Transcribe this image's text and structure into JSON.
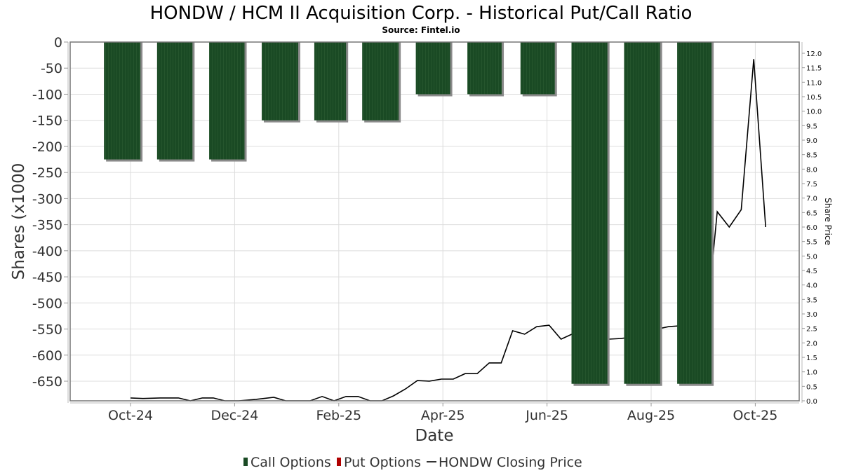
{
  "chart_data": {
    "type": "bar",
    "title": "HONDW / HCM II Acquisition Corp. - Historical Put/Call Ratio",
    "subtitle": "Source: Fintel.io",
    "xlabel": "Date",
    "ylabel": "Shares (x1000",
    "y2label": "Share Price",
    "ylim": [
      -690,
      0
    ],
    "y2lim": [
      0,
      12.4
    ],
    "xrange_months_from_oct24": [
      -1.16,
      12.84
    ],
    "grid": true,
    "legend_position": "bottom",
    "x_ticks": [
      {
        "label": "Oct-24",
        "month": 0
      },
      {
        "label": "Dec-24",
        "month": 2
      },
      {
        "label": "Feb-25",
        "month": 4
      },
      {
        "label": "Apr-25",
        "month": 6
      },
      {
        "label": "Jun-25",
        "month": 8
      },
      {
        "label": "Aug-25",
        "month": 10
      },
      {
        "label": "Oct-25",
        "month": 12
      }
    ],
    "y_ticks": [
      "0",
      "-50",
      "-100",
      "-150",
      "-200",
      "-250",
      "-300",
      "-350",
      "-400",
      "-450",
      "-500",
      "-550",
      "-600",
      "-650"
    ],
    "y_tick_values": [
      0,
      -50,
      -100,
      -150,
      -200,
      -250,
      -300,
      -350,
      -400,
      -450,
      -500,
      -550,
      -600,
      -650
    ],
    "y2_ticks": [
      "0.0",
      "0.5",
      "1.0",
      "1.5",
      "2.0",
      "2.5",
      "3.0",
      "3.5",
      "4.0",
      "4.5",
      "5.0",
      "5.5",
      "6.0",
      "6.5",
      "7.0",
      "7.5",
      "8.0",
      "8.5",
      "9.0",
      "9.5",
      "10.0",
      "10.5",
      "11.0",
      "11.5",
      "12.0"
    ],
    "y2_tick_values": [
      0,
      0.5,
      1,
      1.5,
      2,
      2.5,
      3,
      3.5,
      4,
      4.5,
      5,
      5.5,
      6,
      6.5,
      7,
      7.5,
      8,
      8.5,
      9,
      9.5,
      10,
      10.5,
      11,
      11.5,
      12
    ],
    "legend": [
      {
        "label": "Call Options",
        "color": "#1a4a24",
        "kind": "bar"
      },
      {
        "label": "Put Options",
        "color": "#b00000",
        "kind": "bar"
      },
      {
        "label": "HONDW Closing Price",
        "color": "#000000",
        "kind": "line"
      }
    ],
    "series": [
      {
        "name": "Call Options",
        "color": "#1a4a24",
        "bars": [
          {
            "start_month": -0.51,
            "end_month": 0.19,
            "value": -225
          },
          {
            "start_month": 0.51,
            "end_month": 1.19,
            "value": -225
          },
          {
            "start_month": 1.51,
            "end_month": 2.19,
            "value": -225
          },
          {
            "start_month": 2.52,
            "end_month": 3.22,
            "value": -150
          },
          {
            "start_month": 3.53,
            "end_month": 4.14,
            "value": -150
          },
          {
            "start_month": 4.45,
            "end_month": 5.15,
            "value": -150
          },
          {
            "start_month": 5.48,
            "end_month": 6.14,
            "value": -100
          },
          {
            "start_month": 6.47,
            "end_month": 7.13,
            "value": -100
          },
          {
            "start_month": 7.49,
            "end_month": 8.15,
            "value": -100
          },
          {
            "start_month": 8.47,
            "end_month": 9.16,
            "value": -655
          },
          {
            "start_month": 9.48,
            "end_month": 10.17,
            "value": -655
          },
          {
            "start_month": 10.5,
            "end_month": 11.16,
            "value": -655
          }
        ]
      },
      {
        "name": "Put Options",
        "color": "#b00000",
        "bars": []
      },
      {
        "name": "HONDW Closing Price",
        "color": "#000000",
        "axis": "right",
        "points": [
          [
            0.0,
            0.1
          ],
          [
            0.24,
            0.08
          ],
          [
            0.57,
            0.1
          ],
          [
            0.92,
            0.1
          ],
          [
            1.15,
            0.0
          ],
          [
            1.38,
            0.1
          ],
          [
            1.59,
            0.1
          ],
          [
            1.81,
            0.0
          ],
          [
            2.08,
            0.0
          ],
          [
            2.41,
            0.05
          ],
          [
            2.75,
            0.12
          ],
          [
            2.98,
            0.0
          ],
          [
            3.23,
            0.0
          ],
          [
            3.45,
            0.0
          ],
          [
            3.68,
            0.15
          ],
          [
            3.91,
            0.0
          ],
          [
            4.14,
            0.15
          ],
          [
            4.37,
            0.15
          ],
          [
            4.6,
            0.0
          ],
          [
            4.83,
            0.0
          ],
          [
            5.05,
            0.17
          ],
          [
            5.28,
            0.41
          ],
          [
            5.51,
            0.7
          ],
          [
            5.74,
            0.68
          ],
          [
            5.97,
            0.75
          ],
          [
            6.2,
            0.75
          ],
          [
            6.43,
            0.94
          ],
          [
            6.66,
            0.94
          ],
          [
            6.89,
            1.31
          ],
          [
            7.12,
            1.31
          ],
          [
            7.34,
            2.42
          ],
          [
            7.57,
            2.3
          ],
          [
            7.8,
            2.56
          ],
          [
            8.04,
            2.61
          ],
          [
            8.27,
            2.13
          ],
          [
            8.5,
            2.32
          ],
          [
            8.73,
            2.45
          ],
          [
            8.96,
            2.27
          ],
          [
            9.19,
            2.13
          ],
          [
            9.41,
            2.15
          ],
          [
            9.64,
            2.2
          ],
          [
            9.87,
            2.1
          ],
          [
            10.1,
            2.47
          ],
          [
            10.33,
            2.56
          ],
          [
            10.56,
            2.59
          ],
          [
            10.79,
            2.54
          ],
          [
            11.02,
            3.19
          ],
          [
            11.11,
            3.56
          ],
          [
            11.27,
            6.53
          ],
          [
            11.5,
            6.0
          ],
          [
            11.73,
            6.6
          ],
          [
            11.97,
            11.8
          ],
          [
            12.2,
            6.0
          ]
        ]
      }
    ]
  }
}
